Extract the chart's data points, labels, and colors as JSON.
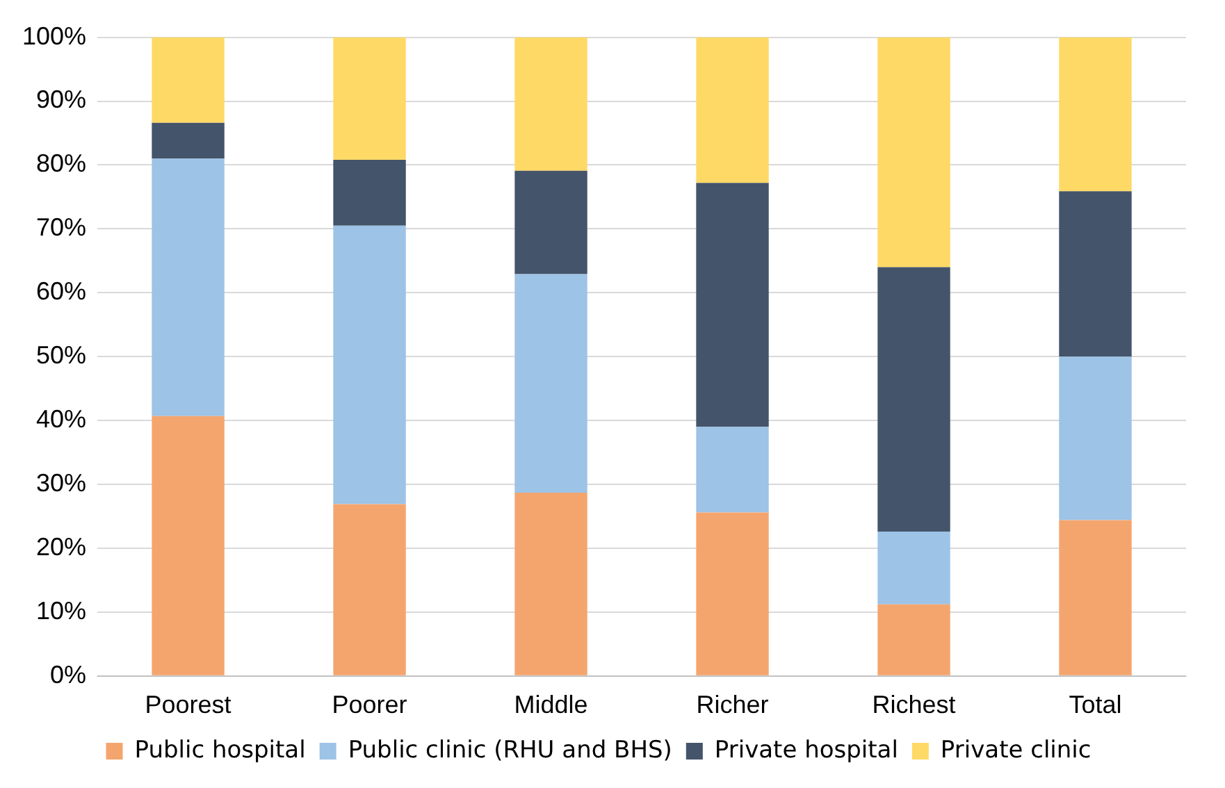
{
  "chart_data": {
    "type": "bar",
    "stacked": true,
    "categories": [
      "Poorest",
      "Poorer",
      "Middle",
      "Richer",
      "Richest",
      "Total"
    ],
    "series": [
      {
        "name": "Public hospital",
        "color": "#f4a56e",
        "values": [
          40.7,
          26.9,
          28.7,
          25.6,
          11.2,
          24.4
        ]
      },
      {
        "name": "Public clinic (RHU and BHS)",
        "color": "#9dc3e6",
        "values": [
          40.3,
          43.6,
          34.2,
          13.4,
          11.4,
          25.6
        ]
      },
      {
        "name": "Private hospital",
        "color": "#44546a",
        "values": [
          5.6,
          10.3,
          16.2,
          38.2,
          41.4,
          25.9
        ]
      },
      {
        "name": "Private clinic",
        "color": "#ffd966",
        "values": [
          13.4,
          19.2,
          20.9,
          22.8,
          36.0,
          24.1
        ]
      }
    ],
    "ylim": [
      0,
      100
    ],
    "yticks": [
      {
        "value": 0,
        "label": "0%"
      },
      {
        "value": 10,
        "label": "10%"
      },
      {
        "value": 20,
        "label": "20%"
      },
      {
        "value": 30,
        "label": "30%"
      },
      {
        "value": 40,
        "label": "40%"
      },
      {
        "value": 50,
        "label": "50%"
      },
      {
        "value": 60,
        "label": "60%"
      },
      {
        "value": 70,
        "label": "70%"
      },
      {
        "value": 80,
        "label": "80%"
      },
      {
        "value": 90,
        "label": "90%"
      },
      {
        "value": 100,
        "label": "100%"
      }
    ],
    "grid": "y",
    "legend": "bottom"
  }
}
